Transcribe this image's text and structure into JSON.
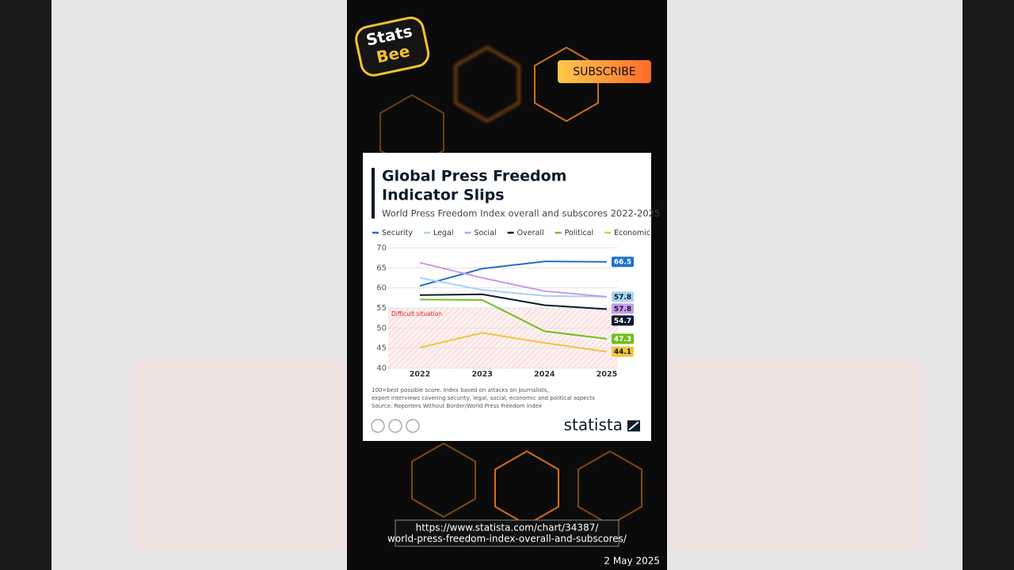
{
  "overlay": {
    "logo": [
      "Stats",
      "Bee"
    ],
    "subscribe": "SUBSCRIBE",
    "url": [
      "https://www.statista.com/chart/34387/",
      "world-press-freedom-index-overall-and-subscores/"
    ],
    "date": "2 May 2025"
  },
  "chart_data": {
    "type": "line",
    "title": [
      "Global Press Freedom",
      "Indicator Slips"
    ],
    "subtitle": "World Press Freedom Index overall and subscores 2022-2025",
    "categories": [
      "2022",
      "2023",
      "2024",
      "2025"
    ],
    "series": [
      {
        "name": "Security",
        "color": "#1f6fd1",
        "values": [
          60.5,
          64.8,
          66.6,
          66.5
        ]
      },
      {
        "name": "Legal",
        "color": "#a8d2ee",
        "values": [
          62.5,
          59.5,
          58.0,
          57.8
        ]
      },
      {
        "name": "Social",
        "color": "#c79be8",
        "values": [
          66.3,
          62.5,
          59.2,
          57.8
        ]
      },
      {
        "name": "Overall",
        "color": "#0d1b2a",
        "values": [
          58.2,
          58.4,
          55.7,
          54.7
        ]
      },
      {
        "name": "Political",
        "color": "#72be1e",
        "values": [
          57.1,
          57.0,
          49.2,
          47.3
        ]
      },
      {
        "name": "Economic",
        "color": "#f0c53a",
        "values": [
          45.1,
          48.8,
          46.3,
          44.1
        ]
      }
    ],
    "ylim": [
      40,
      70
    ],
    "yticks": [
      40,
      45,
      50,
      55,
      60,
      65,
      70
    ],
    "grid": true,
    "zone": {
      "label": "Difficult situation",
      "from": 40,
      "to": 55
    },
    "note": [
      "100=best possible score. Index based on attacks on journalists,",
      "expert interviews covering security, legal, social, economic and political aspects",
      "Source: Reporters Without Border/World Press Freedom Index"
    ],
    "brand": "statista"
  }
}
